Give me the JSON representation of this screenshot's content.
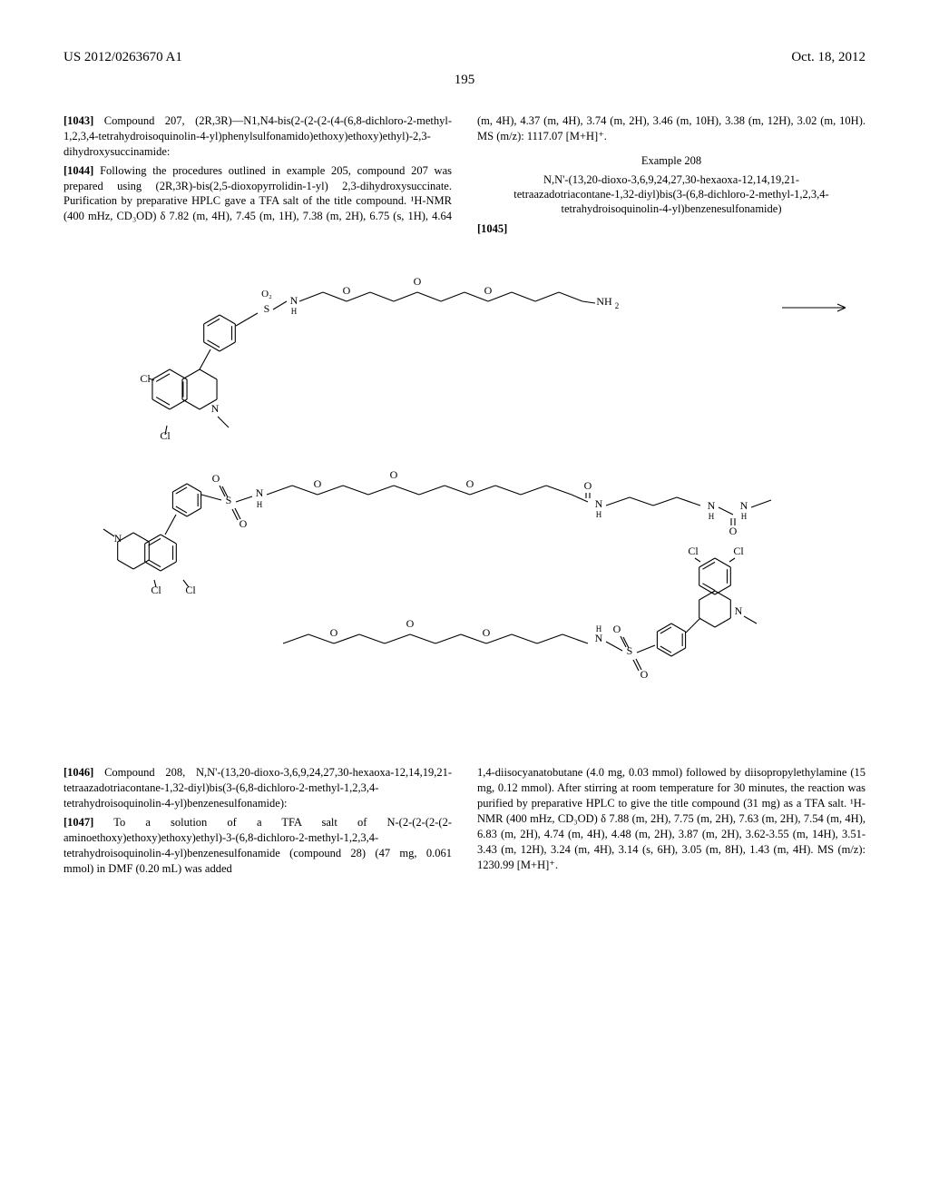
{
  "header": {
    "left": "US 2012/0263670 A1",
    "right": "Oct. 18, 2012"
  },
  "page_number": "195",
  "paragraphs": {
    "p1043": "Compound 207, (2R,3R)—N1,N4-bis(2-(2-(2-(4-(6,8-dichloro-2-methyl-1,2,3,4-tetrahydroisoquinolin-4-yl)phenylsulfonamido)ethoxy)ethoxy)ethyl)-2,3-dihydroxysuccinamide:",
    "p1044": "Following the procedures outlined in example 205, compound 207 was prepared using (2R,3R)-bis(2,5-dioxopyrrolidin-1-yl) 2,3-dihydroxysuccinate. Purification by preparative HPLC gave a TFA salt of the title compound. ¹H-NMR (400 mHz, CD₃OD) δ 7.82 (m, 4H), 7.45 (m, 1H), 7.38 (m, 2H), 6.75 (s, 1H), 4.64 (m, 4H), 4.37 (m, 4H), 3.74 (m, 2H), 3.46 (m, 10H), 3.38 (m, 12H), 3.02 (m, 10H). MS (m/z): 1117.07 [M+H]⁺.",
    "example_label": "Example 208",
    "compound_title": "N,N'-(13,20-dioxo-3,6,9,24,27,30-hexaoxa-12,14,19,21-tetraazadotriacontane-1,32-diyl)bis(3-(6,8-dichloro-2-methyl-1,2,3,4-tetrahydroisoquinolin-4-yl)benzenesulfonamide)",
    "p1045": "",
    "p1046": "Compound 208, N,N'-(13,20-dioxo-3,6,9,24,27,30-hexaoxa-12,14,19,21-tetraazadotriacontane-1,32-diyl)bis(3-(6,8-dichloro-2-methyl-1,2,3,4-tetrahydroisoquinolin-4-yl)benzenesulfonamide):",
    "p1047a": "To a solution of a TFA salt of N-(2-(2-(2-(2-aminoethoxy)ethoxy)ethoxy)ethyl)-3-(6,8-dichloro-2-methyl-1,2,3,4-tetrahydroisoquinolin-4-yl)benzenesulfonamide (compound 28) (47 mg, 0.061 mmol) in DMF (0.20 mL) was added",
    "p1047b": "1,4-diisocyanatobutane (4.0 mg, 0.03 mmol) followed by diisopropylethylamine (15 mg, 0.12 mmol). After stirring at room temperature for 30 minutes, the reaction was purified by preparative HPLC to give the title compound (31 mg) as a TFA salt. ¹H-NMR (400 mHz, CD₃OD) δ 7.88 (m, 2H), 7.75 (m, 2H), 7.63 (m, 2H), 7.54 (m, 4H), 6.83 (m, 2H), 4.74 (m, 4H), 4.48 (m, 2H), 3.87 (m, 2H), 3.62-3.55 (m, 14H), 3.51-3.43 (m, 12H), 3.24 (m, 4H), 3.14 (s, 6H), 3.05 (m, 8H), 1.43 (m, 4H). MS (m/z): 1230.99 [M+H]⁺."
  },
  "labels": {
    "n1043": "[1043]",
    "n1044": "[1044]",
    "n1045": "[1045]",
    "n1046": "[1046]",
    "n1047": "[1047]"
  },
  "chem_labels": {
    "O2": "O₂",
    "S": "S",
    "N": "N",
    "NH": "NH",
    "NH2": "NH₂",
    "Cl": "Cl",
    "O": "O",
    "H": "H"
  },
  "chem_style": {
    "stroke": "#000000",
    "stroke_width": 1.1,
    "font_family": "Times New Roman, serif",
    "font_size": 12,
    "sub_size": 9
  }
}
